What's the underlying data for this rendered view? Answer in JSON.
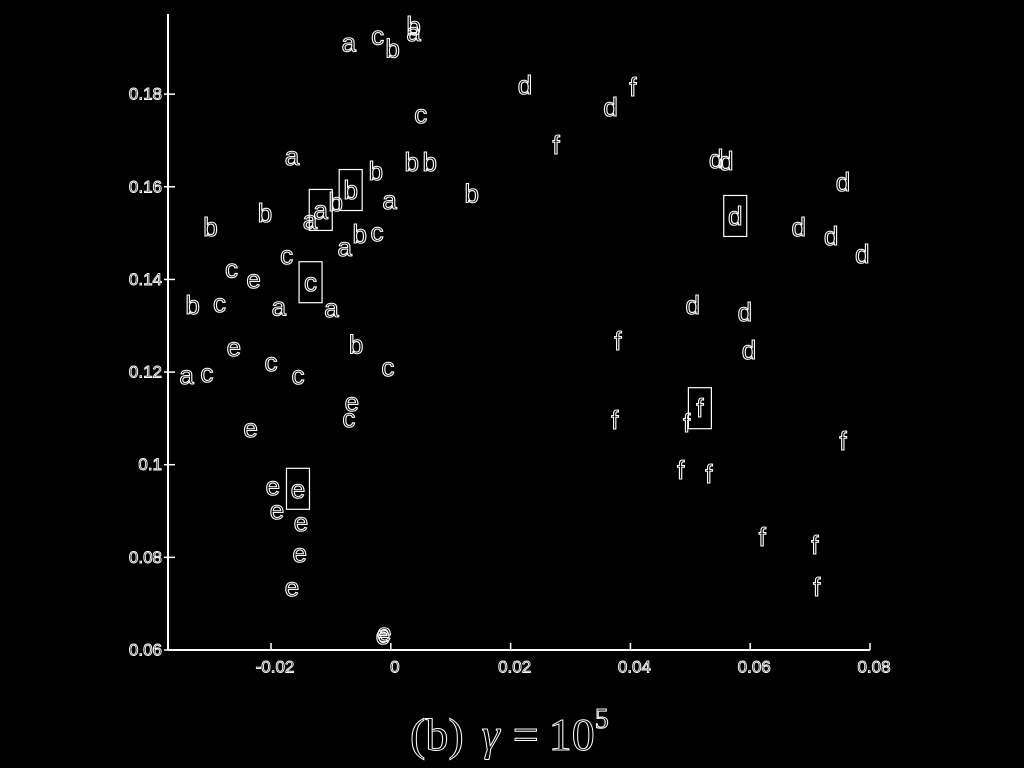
{
  "colors": {
    "background": "#000000",
    "foreground": "#ffffff"
  },
  "caption": {
    "label": "(b)",
    "variable": "γ",
    "relation": "=",
    "base": "10",
    "exponent": "5"
  },
  "chart_data": {
    "type": "scatter",
    "marker_style": "letters",
    "grid": false,
    "xlim": [
      -0.0372,
      0.08
    ],
    "ylim": [
      0.06,
      0.1973
    ],
    "xticks": [
      -0.02,
      0,
      0.02,
      0.04,
      0.06,
      0.08
    ],
    "xtick_labels": [
      "-0.02",
      "0",
      "0.02",
      "0.04",
      "0.06",
      "0.08"
    ],
    "yticks": [
      0.06,
      0.08,
      0.1,
      0.12,
      0.14,
      0.16,
      0.18
    ],
    "ytick_labels": [
      "0.06",
      "0.08",
      "0.1",
      "0.12",
      "0.14",
      "0.16",
      "0.18"
    ],
    "points": [
      {
        "label": "a",
        "x": -0.007,
        "y": 0.1912
      },
      {
        "label": "c",
        "x": -0.0022,
        "y": 0.1927
      },
      {
        "label": "b",
        "x": 0.0003,
        "y": 0.1899
      },
      {
        "label": "b",
        "x": 0.0038,
        "y": 0.1947
      },
      {
        "label": "a",
        "x": 0.0038,
        "y": 0.1934
      },
      {
        "label": "d",
        "x": 0.0224,
        "y": 0.182
      },
      {
        "label": "f",
        "x": 0.0404,
        "y": 0.1815
      },
      {
        "label": "d",
        "x": 0.0367,
        "y": 0.1772
      },
      {
        "label": "c",
        "x": 0.005,
        "y": 0.1757
      },
      {
        "label": "f",
        "x": 0.0276,
        "y": 0.169
      },
      {
        "label": "a",
        "x": -0.0165,
        "y": 0.1666
      },
      {
        "label": "b",
        "x": 0.0035,
        "y": 0.1653
      },
      {
        "label": "b",
        "x": 0.0065,
        "y": 0.1653
      },
      {
        "label": "b",
        "x": -0.0025,
        "y": 0.1634
      },
      {
        "label": "d",
        "x": 0.0543,
        "y": 0.166
      },
      {
        "label": "d",
        "x": 0.056,
        "y": 0.1656
      },
      {
        "label": "d",
        "x": 0.0755,
        "y": 0.161
      },
      {
        "label": "b",
        "x": -0.0067,
        "y": 0.1593,
        "boxed": true
      },
      {
        "label": "b",
        "x": 0.0135,
        "y": 0.1586
      },
      {
        "label": "a",
        "x": -0.0002,
        "y": 0.1571
      },
      {
        "label": "b",
        "x": -0.0092,
        "y": 0.1567
      },
      {
        "label": "a",
        "x": -0.0117,
        "y": 0.155,
        "boxed": true
      },
      {
        "label": "a",
        "x": -0.0135,
        "y": 0.1528
      },
      {
        "label": "b",
        "x": -0.0301,
        "y": 0.1513
      },
      {
        "label": "b",
        "x": -0.021,
        "y": 0.1543
      },
      {
        "label": "d",
        "x": 0.0575,
        "y": 0.1537,
        "boxed": true
      },
      {
        "label": "d",
        "x": 0.0681,
        "y": 0.1513
      },
      {
        "label": "d",
        "x": 0.0735,
        "y": 0.1494
      },
      {
        "label": "d",
        "x": 0.0787,
        "y": 0.1455
      },
      {
        "label": "b",
        "x": -0.0052,
        "y": 0.1498
      },
      {
        "label": "c",
        "x": -0.0023,
        "y": 0.1502
      },
      {
        "label": "a",
        "x": -0.0077,
        "y": 0.147
      },
      {
        "label": "c",
        "x": -0.0174,
        "y": 0.1453
      },
      {
        "label": "c",
        "x": -0.0266,
        "y": 0.1424
      },
      {
        "label": "e",
        "x": -0.0229,
        "y": 0.1401
      },
      {
        "label": "c",
        "x": -0.0134,
        "y": 0.1394,
        "boxed": true
      },
      {
        "label": "b",
        "x": -0.0331,
        "y": 0.1345
      },
      {
        "label": "c",
        "x": -0.0286,
        "y": 0.1349
      },
      {
        "label": "a",
        "x": -0.0187,
        "y": 0.1342
      },
      {
        "label": "a",
        "x": -0.0099,
        "y": 0.1338
      },
      {
        "label": "d",
        "x": 0.0504,
        "y": 0.1345
      },
      {
        "label": "d",
        "x": 0.0591,
        "y": 0.133
      },
      {
        "label": "f",
        "x": 0.0379,
        "y": 0.1267
      },
      {
        "label": "b",
        "x": -0.0058,
        "y": 0.126
      },
      {
        "label": "e",
        "x": -0.0262,
        "y": 0.1254
      },
      {
        "label": "d",
        "x": 0.0598,
        "y": 0.1248
      },
      {
        "label": "c",
        "x": -0.02,
        "y": 0.1222
      },
      {
        "label": "c",
        "x": -0.0005,
        "y": 0.1211
      },
      {
        "label": "a",
        "x": -0.0341,
        "y": 0.1194
      },
      {
        "label": "c",
        "x": -0.0307,
        "y": 0.1198
      },
      {
        "label": "c",
        "x": -0.0155,
        "y": 0.1194
      },
      {
        "label": "e",
        "x": -0.0065,
        "y": 0.1135
      },
      {
        "label": "c",
        "x": -0.007,
        "y": 0.1101
      },
      {
        "label": "f",
        "x": 0.0374,
        "y": 0.1096
      },
      {
        "label": "f",
        "x": 0.0516,
        "y": 0.1122,
        "boxed": true
      },
      {
        "label": "f",
        "x": 0.0494,
        "y": 0.109
      },
      {
        "label": "e",
        "x": -0.0234,
        "y": 0.1079
      },
      {
        "label": "f",
        "x": 0.0755,
        "y": 0.1051
      },
      {
        "label": "f",
        "x": 0.0484,
        "y": 0.0989
      },
      {
        "label": "f",
        "x": 0.0531,
        "y": 0.098
      },
      {
        "label": "e",
        "x": -0.0197,
        "y": 0.0954
      },
      {
        "label": "e",
        "x": -0.0155,
        "y": 0.0948,
        "boxed": true
      },
      {
        "label": "e",
        "x": -0.019,
        "y": 0.0902
      },
      {
        "label": "e",
        "x": -0.015,
        "y": 0.0876
      },
      {
        "label": "f",
        "x": 0.062,
        "y": 0.0844
      },
      {
        "label": "f",
        "x": 0.0708,
        "y": 0.0827
      },
      {
        "label": "e",
        "x": -0.0152,
        "y": 0.0809
      },
      {
        "label": "f",
        "x": 0.0711,
        "y": 0.0736
      },
      {
        "label": "e",
        "x": -0.0165,
        "y": 0.0736
      },
      {
        "label": "e",
        "x": -0.0013,
        "y": 0.0632
      },
      {
        "label": "e",
        "x": -0.0011,
        "y": 0.0638
      }
    ]
  }
}
